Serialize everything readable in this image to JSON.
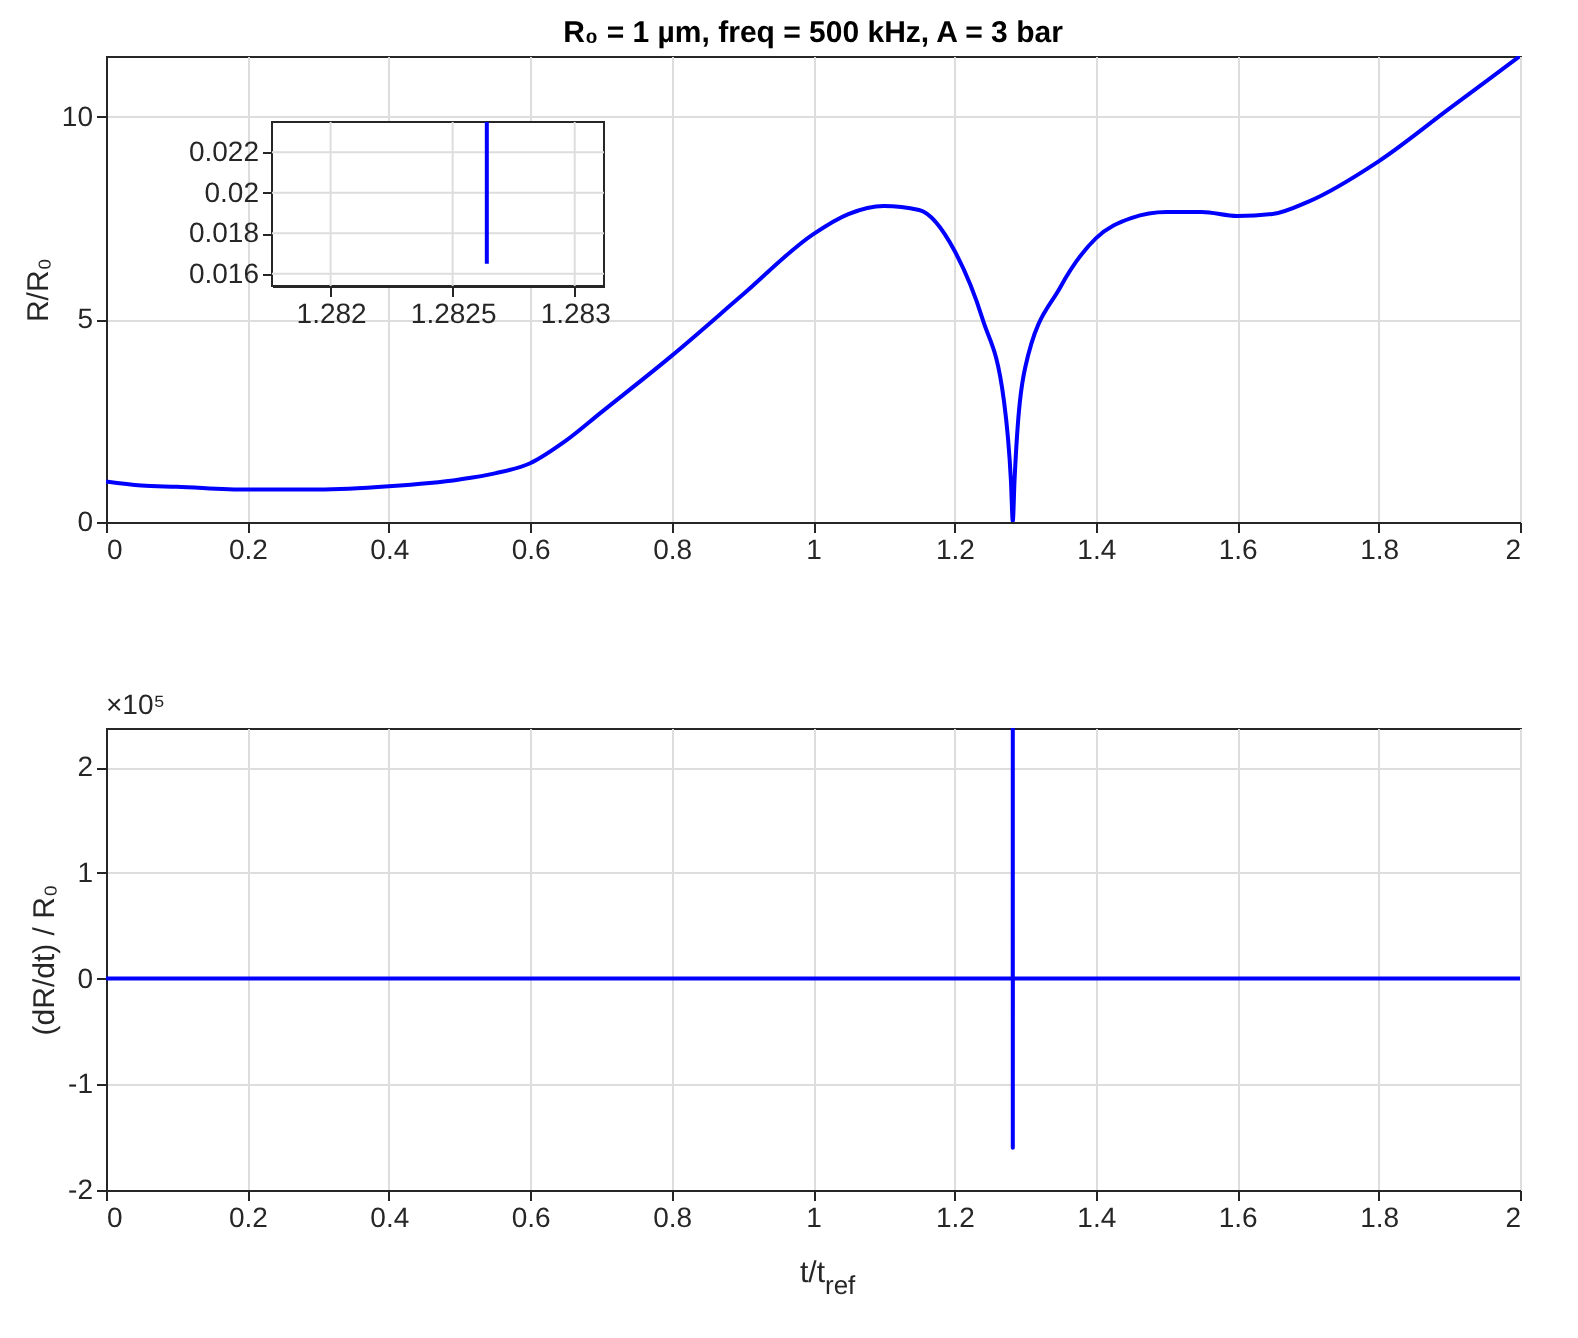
{
  "chart_data": [
    {
      "type": "line",
      "title": "R₀ = 1 µm, freq = 500 kHz, A = 3 bar",
      "ylabel": "R/R₀",
      "x": [
        0,
        0.05,
        0.1,
        0.2,
        0.3,
        0.4,
        0.5,
        0.55,
        0.6,
        0.65,
        0.7,
        0.8,
        0.9,
        1.0,
        1.05,
        1.1,
        1.15,
        1.2,
        1.24,
        1.27,
        1.28,
        1.2826,
        1.285,
        1.3,
        1.35,
        1.4,
        1.45,
        1.5,
        1.55,
        1.6,
        1.65,
        1.7,
        1.8,
        1.9,
        2.0
      ],
      "series": [
        {
          "color": "#0000ff",
          "values": [
            1.0,
            0.9,
            0.87,
            0.8,
            0.8,
            0.88,
            1.05,
            1.2,
            1.45,
            2.0,
            2.7,
            4.1,
            5.6,
            7.1,
            7.6,
            7.8,
            7.7,
            6.7,
            5.0,
            3.0,
            1.0,
            0.02,
            1.0,
            3.8,
            5.8,
            7.0,
            7.5,
            7.65,
            7.65,
            7.55,
            7.6,
            7.9,
            8.9,
            10.2,
            11.5
          ]
        }
      ],
      "xlim": [
        0,
        2
      ],
      "xticks": [
        0,
        0.2,
        0.4,
        0.6,
        0.8,
        1,
        1.2,
        1.4,
        1.6,
        1.8,
        2
      ],
      "ylim": [
        0,
        11.5
      ],
      "yticks": [
        0,
        5,
        10
      ],
      "grid": true,
      "marker": "none",
      "line_style": "solid"
    },
    {
      "type": "line",
      "x": [
        1.28264,
        1.28264
      ],
      "series": [
        {
          "color": "#0000ff",
          "values": [
            0.0165,
            0.0235
          ]
        }
      ],
      "xlim": [
        1.28176,
        1.28312
      ],
      "xticks": [
        1.282,
        1.2825,
        1.283
      ],
      "ylim": [
        0.0154,
        0.0235
      ],
      "yticks": [
        0.016,
        0.018,
        0.02,
        0.022
      ],
      "grid": true,
      "marker": "none",
      "line_style": "solid"
    },
    {
      "type": "line",
      "xlabel": "t/t$_{ref}$",
      "ylabel": "(dR/dt) / R₀",
      "annotations": [
        "×10⁵"
      ],
      "x": [
        0,
        1.2825,
        1.2826,
        1.2826,
        1.2827,
        2
      ],
      "series": [
        {
          "color": "#0000ff",
          "values": [
            0,
            0,
            2.37,
            -1.6,
            0,
            0
          ]
        }
      ],
      "xlim": [
        0,
        2
      ],
      "xticks": [
        0,
        0.2,
        0.4,
        0.6,
        0.8,
        1,
        1.2,
        1.4,
        1.6,
        1.8,
        2
      ],
      "ylim": [
        -2,
        2.37
      ],
      "yticks": [
        -2,
        -1,
        0,
        1,
        2
      ],
      "grid": true,
      "marker": "none",
      "line_style": "solid"
    }
  ]
}
